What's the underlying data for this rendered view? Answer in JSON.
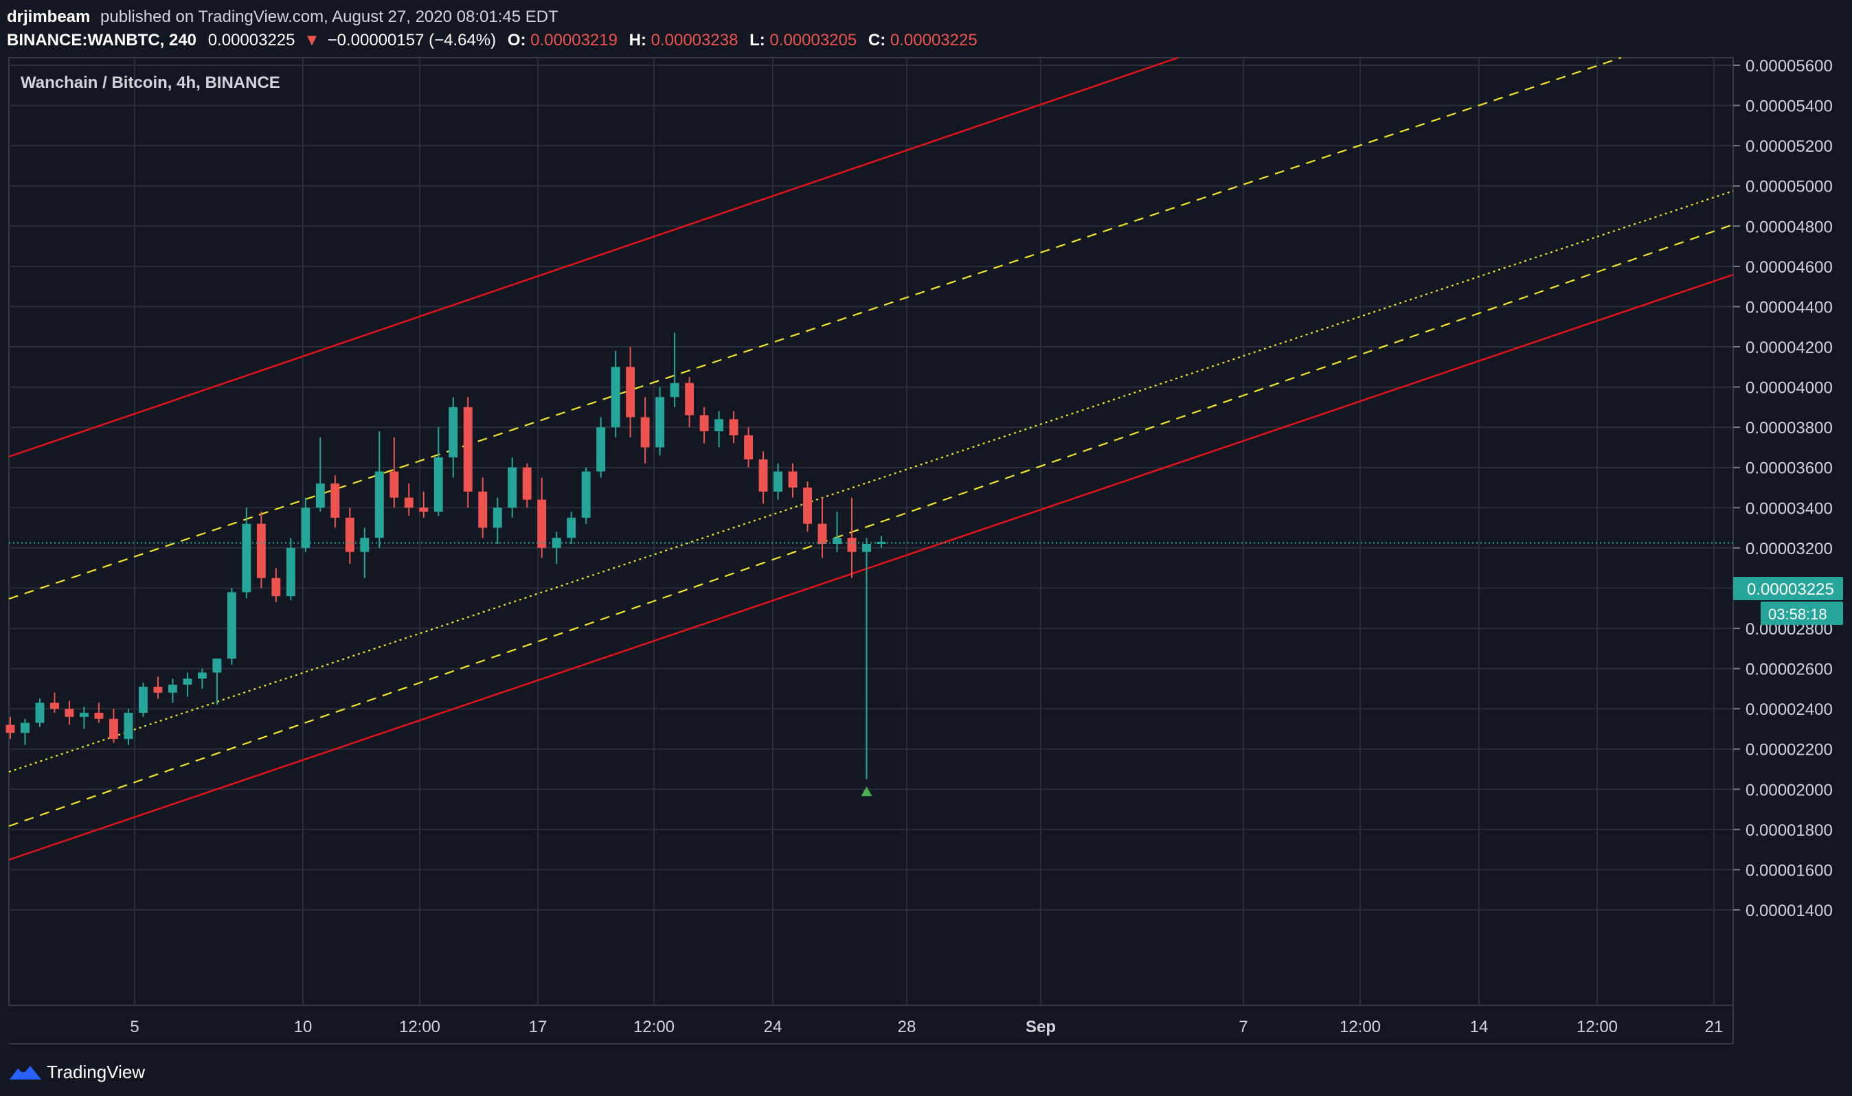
{
  "header": {
    "author": "drjimbeam",
    "published_text": "published on TradingView.com, August 27, 2020 08:01:45 EDT",
    "symbol": "BINANCE:WANBTC, 240",
    "last": "0.00003225",
    "change": "−0.00000157 (−4.64%)",
    "o_label": "O:",
    "o_value": "0.00003219",
    "h_label": "H:",
    "h_value": "0.00003238",
    "l_label": "L:",
    "l_value": "0.00003205",
    "c_label": "C:",
    "c_value": "0.00003225"
  },
  "legend": {
    "title": "Wanchain / Bitcoin, 4h, BINANCE"
  },
  "price_scale": {
    "ticks": [
      "0.00005600",
      "0.00005400",
      "0.00005200",
      "0.00005000",
      "0.00004800",
      "0.00004600",
      "0.00004400",
      "0.00004200",
      "0.00004000",
      "0.00003800",
      "0.00003600",
      "0.00003400",
      "0.00003200",
      "0.00003000",
      "0.00002800",
      "0.00002600",
      "0.00002400",
      "0.00002200",
      "0.00002000",
      "0.00001800",
      "0.00001600",
      "0.00001400"
    ],
    "last_price_label": "0.00003225",
    "countdown": "03:58:18"
  },
  "time_scale": {
    "ticks": [
      "5",
      "10",
      "12:00",
      "17",
      "12:00",
      "24",
      "28",
      "Sep",
      "7",
      "12:00",
      "14",
      "12:00",
      "21"
    ],
    "bold_ticks": [
      "Sep"
    ]
  },
  "footer": {
    "brand": "TradingView"
  },
  "colors": {
    "background": "#131722",
    "grid": "#2a2e39",
    "up": "#26a69a",
    "down": "#ef5350",
    "channel_red": "#e4121a",
    "channel_yellow": "#f5e52a",
    "last_price_line": "#26a69a",
    "text": "#d1d4dc"
  },
  "chart_data": {
    "type": "candlestick",
    "title": "Wanchain / Bitcoin, 4h, BINANCE",
    "symbol": "BINANCE:WANBTC",
    "interval": "240",
    "ylim": [
      1.3e-05,
      5.7e-05
    ],
    "last_price": 3.225e-05,
    "price_line_style": "dotted",
    "grid": true,
    "series": [
      {
        "name": "WANBTC",
        "ohlc_approx": [
          [
            2.32e-05,
            2.36e-05,
            2.25e-05,
            2.28e-05
          ],
          [
            2.28e-05,
            2.35e-05,
            2.22e-05,
            2.33e-05
          ],
          [
            2.33e-05,
            2.45e-05,
            2.31e-05,
            2.43e-05
          ],
          [
            2.43e-05,
            2.48e-05,
            2.38e-05,
            2.4e-05
          ],
          [
            2.4e-05,
            2.44e-05,
            2.32e-05,
            2.36e-05
          ],
          [
            2.36e-05,
            2.41e-05,
            2.3e-05,
            2.38e-05
          ],
          [
            2.38e-05,
            2.43e-05,
            2.33e-05,
            2.35e-05
          ],
          [
            2.35e-05,
            2.4e-05,
            2.23e-05,
            2.25e-05
          ],
          [
            2.25e-05,
            2.4e-05,
            2.22e-05,
            2.38e-05
          ],
          [
            2.38e-05,
            2.53e-05,
            2.36e-05,
            2.51e-05
          ],
          [
            2.51e-05,
            2.56e-05,
            2.45e-05,
            2.48e-05
          ],
          [
            2.48e-05,
            2.55e-05,
            2.43e-05,
            2.52e-05
          ],
          [
            2.52e-05,
            2.58e-05,
            2.46e-05,
            2.55e-05
          ],
          [
            2.55e-05,
            2.6e-05,
            2.5e-05,
            2.58e-05
          ],
          [
            2.58e-05,
            2.62e-05,
            2.42e-05,
            2.65e-05
          ],
          [
            2.65e-05,
            3e-05,
            2.62e-05,
            2.98e-05
          ],
          [
            2.98e-05,
            3.4e-05,
            2.95e-05,
            3.32e-05
          ],
          [
            3.32e-05,
            3.38e-05,
            3e-05,
            3.05e-05
          ],
          [
            3.05e-05,
            3.1e-05,
            2.93e-05,
            2.96e-05
          ],
          [
            2.96e-05,
            3.25e-05,
            2.94e-05,
            3.2e-05
          ],
          [
            3.2e-05,
            3.45e-05,
            3.18e-05,
            3.4e-05
          ],
          [
            3.4e-05,
            3.75e-05,
            3.38e-05,
            3.52e-05
          ],
          [
            3.52e-05,
            3.56e-05,
            3.3e-05,
            3.35e-05
          ],
          [
            3.35e-05,
            3.4e-05,
            3.12e-05,
            3.18e-05
          ],
          [
            3.18e-05,
            3.3e-05,
            3.05e-05,
            3.25e-05
          ],
          [
            3.25e-05,
            3.78e-05,
            3.2e-05,
            3.58e-05
          ],
          [
            3.58e-05,
            3.75e-05,
            3.4e-05,
            3.45e-05
          ],
          [
            3.45e-05,
            3.52e-05,
            3.36e-05,
            3.4e-05
          ],
          [
            3.4e-05,
            3.48e-05,
            3.35e-05,
            3.38e-05
          ],
          [
            3.38e-05,
            3.8e-05,
            3.36e-05,
            3.65e-05
          ],
          [
            3.65e-05,
            3.95e-05,
            3.55e-05,
            3.9e-05
          ],
          [
            3.9e-05,
            3.95e-05,
            3.4e-05,
            3.48e-05
          ],
          [
            3.48e-05,
            3.55e-05,
            3.25e-05,
            3.3e-05
          ],
          [
            3.3e-05,
            3.45e-05,
            3.22e-05,
            3.4e-05
          ],
          [
            3.4e-05,
            3.65e-05,
            3.35e-05,
            3.6e-05
          ],
          [
            3.6e-05,
            3.62e-05,
            3.4e-05,
            3.44e-05
          ],
          [
            3.44e-05,
            3.55e-05,
            3.15e-05,
            3.2e-05
          ],
          [
            3.2e-05,
            3.28e-05,
            3.12e-05,
            3.25e-05
          ],
          [
            3.25e-05,
            3.38e-05,
            3.22e-05,
            3.35e-05
          ],
          [
            3.35e-05,
            3.6e-05,
            3.32e-05,
            3.58e-05
          ],
          [
            3.58e-05,
            3.85e-05,
            3.55e-05,
            3.8e-05
          ],
          [
            3.8e-05,
            4.18e-05,
            3.75e-05,
            4.1e-05
          ],
          [
            4.1e-05,
            4.2e-05,
            3.75e-05,
            3.85e-05
          ],
          [
            3.85e-05,
            3.95e-05,
            3.62e-05,
            3.7e-05
          ],
          [
            3.7e-05,
            4e-05,
            3.66e-05,
            3.95e-05
          ],
          [
            3.95e-05,
            4.27e-05,
            3.9e-05,
            4.02e-05
          ],
          [
            4.02e-05,
            4.05e-05,
            3.8e-05,
            3.86e-05
          ],
          [
            3.86e-05,
            3.9e-05,
            3.72e-05,
            3.78e-05
          ],
          [
            3.78e-05,
            3.88e-05,
            3.7e-05,
            3.84e-05
          ],
          [
            3.84e-05,
            3.88e-05,
            3.72e-05,
            3.76e-05
          ],
          [
            3.76e-05,
            3.8e-05,
            3.6e-05,
            3.64e-05
          ],
          [
            3.64e-05,
            3.68e-05,
            3.42e-05,
            3.48e-05
          ],
          [
            3.48e-05,
            3.62e-05,
            3.44e-05,
            3.58e-05
          ],
          [
            3.58e-05,
            3.62e-05,
            3.45e-05,
            3.5e-05
          ],
          [
            3.5e-05,
            3.53e-05,
            3.28e-05,
            3.32e-05
          ],
          [
            3.32e-05,
            3.45e-05,
            3.15e-05,
            3.22e-05
          ],
          [
            3.22e-05,
            3.38e-05,
            3.18e-05,
            3.25e-05
          ],
          [
            3.25e-05,
            3.45e-05,
            3.05e-05,
            3.18e-05
          ],
          [
            3.18e-05,
            3.25e-05,
            2.05e-05,
            3.22e-05
          ],
          [
            3.22e-05,
            3.26e-05,
            3.2e-05,
            3.23e-05
          ]
        ]
      }
    ],
    "overlays": [
      {
        "type": "channel_line",
        "style": "solid",
        "color": "red",
        "role": "upper"
      },
      {
        "type": "channel_line",
        "style": "solid",
        "color": "red",
        "role": "lower"
      },
      {
        "type": "channel_line",
        "style": "dashed",
        "color": "yellow",
        "role": "upper"
      },
      {
        "type": "channel_line",
        "style": "dashed",
        "color": "yellow",
        "role": "lower"
      },
      {
        "type": "channel_line",
        "style": "dotted",
        "color": "yellow",
        "role": "middle"
      }
    ],
    "marker": {
      "shape": "triangle-up",
      "color": "green",
      "price": 2e-05
    }
  }
}
